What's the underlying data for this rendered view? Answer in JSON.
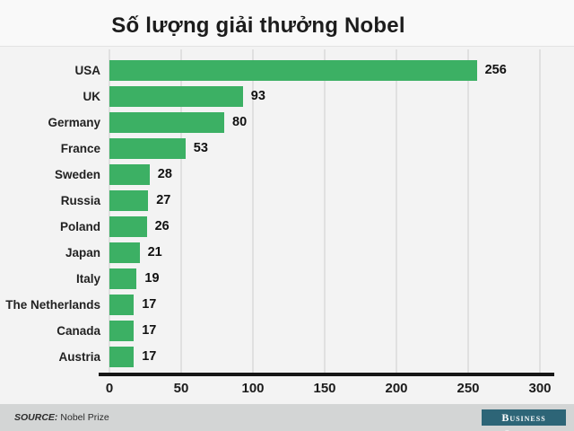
{
  "title": "Số lượng giải thưởng Nobel",
  "chart_data": {
    "type": "bar",
    "orientation": "horizontal",
    "title": "Số lượng giải thưởng Nobel",
    "categories": [
      "USA",
      "UK",
      "Germany",
      "France",
      "Sweden",
      "Russia",
      "Poland",
      "Japan",
      "Italy",
      "The Netherlands",
      "Canada",
      "Austria"
    ],
    "values": [
      256,
      93,
      80,
      53,
      28,
      27,
      26,
      21,
      19,
      17,
      17,
      17
    ],
    "xlabel": "",
    "ylabel": "",
    "xlim": [
      0,
      300
    ],
    "xticks": [
      0,
      50,
      100,
      150,
      200,
      250,
      300
    ],
    "grid": true,
    "value_labels": true,
    "bar_color": "#3cb064",
    "gridline_color": "#e0e0e0",
    "axis_color": "#161616"
  },
  "footer": {
    "source_label": "SOURCE:",
    "source_value": "Nobel Prize",
    "brand": "Business Insider",
    "brand_bg": "#2d6577",
    "footer_bg": "#d3d5d5"
  }
}
